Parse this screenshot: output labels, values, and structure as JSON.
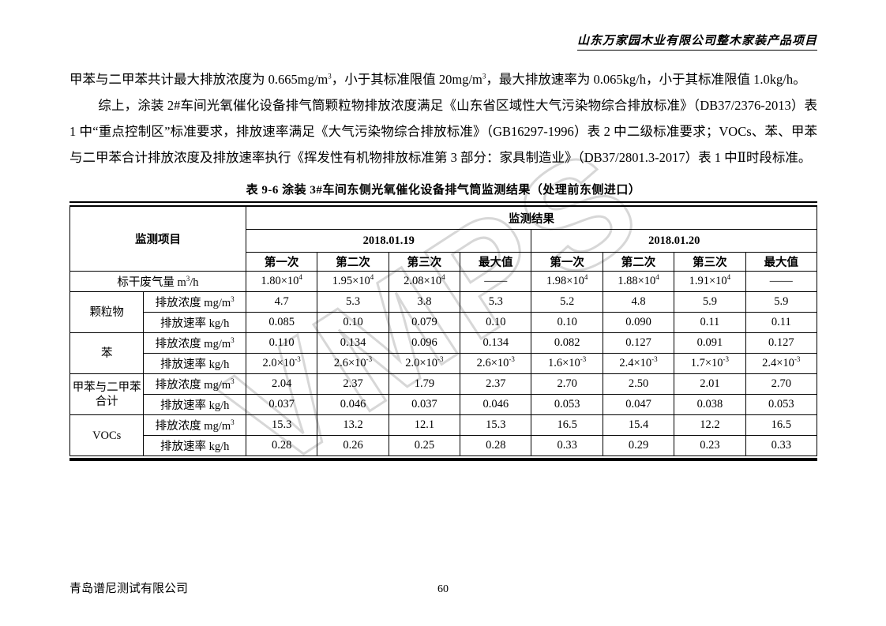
{
  "header": {
    "title": "山东万家园木业有限公司整木家装产品项目"
  },
  "watermark": "VMPS",
  "paragraphs": [
    {
      "text": "甲苯与二甲苯共计最大排放浓度为 0.665mg/m^{3}，小于其标准限值 20mg/m^{3}，最大排放速率为 0.065kg/h，小于其标准限值 1.0kg/h。"
    },
    {
      "text": "综上，涂装 2#车间光氧催化设备排气筒颗粒物排放浓度满足《山东省区域性大气污染物综合排放标准》（DB37/2376-2013）表 1 中“重点控制区”标准要求，排放速率满足《大气污染物综合排放标准》（GB16297-1996）表 2 中二级标准要求；VOCs、苯、甲苯与二甲苯合计排放浓度及排放速率执行《挥发性有机物排放标准第 3 部分：家具制造业》（DB37/2801.3-2017）表 1 中Ⅱ时段标准。"
    }
  ],
  "table": {
    "title": "表 9-6  涂装 3#车间东侧光氧催化设备排气筒监测结果（处理前东侧进口）",
    "header": {
      "item_label": "监测项目",
      "result_label": "监测结果",
      "date1": "2018.01.19",
      "date2": "2018.01.20",
      "runs": [
        "第一次",
        "第二次",
        "第三次",
        "最大值",
        "第一次",
        "第二次",
        "第三次",
        "最大值"
      ]
    },
    "rows": [
      {
        "label": "标干废气量  m^{3}/h",
        "values": [
          "1.80×10^{4}",
          "1.95×10^{4}",
          "2.08×10^{4}",
          "——",
          "1.98×10^{4}",
          "1.88×10^{4}",
          "1.91×10^{4}",
          "——"
        ]
      },
      {
        "category": "颗粒物",
        "rowspan": 2,
        "sub": "排放浓度 mg/m^{3}",
        "values": [
          "4.7",
          "5.3",
          "3.8",
          "5.3",
          "5.2",
          "4.8",
          "5.9",
          "5.9"
        ]
      },
      {
        "sub": "排放速率 kg/h",
        "values": [
          "0.085",
          "0.10",
          "0.079",
          "0.10",
          "0.10",
          "0.090",
          "0.11",
          "0.11"
        ]
      },
      {
        "category": "苯",
        "rowspan": 2,
        "sub": "排放浓度 mg/m^{3}",
        "values": [
          "0.110",
          "0.134",
          "0.096",
          "0.134",
          "0.082",
          "0.127",
          "0.091",
          "0.127"
        ]
      },
      {
        "sub": "排放速率 kg/h",
        "values": [
          "2.0×10^{-3}",
          "2.6×10^{-3}",
          "2.0×10^{-3}",
          "2.6×10^{-3}",
          "1.6×10^{-3}",
          "2.4×10^{-3}",
          "1.7×10^{-3}",
          "2.4×10^{-3}"
        ]
      },
      {
        "category": "甲苯与二甲苯合计",
        "rowspan": 2,
        "sub": "排放浓度 mg/m^{3}",
        "values": [
          "2.04",
          "2.37",
          "1.79",
          "2.37",
          "2.70",
          "2.50",
          "2.01",
          "2.70"
        ]
      },
      {
        "sub": "排放速率 kg/h",
        "values": [
          "0.037",
          "0.046",
          "0.037",
          "0.046",
          "0.053",
          "0.047",
          "0.038",
          "0.053"
        ]
      },
      {
        "category": "VOCs",
        "rowspan": 2,
        "sub": "排放浓度 mg/m^{3}",
        "values": [
          "15.3",
          "13.2",
          "12.1",
          "15.3",
          "16.5",
          "15.4",
          "12.2",
          "16.5"
        ]
      },
      {
        "sub": "排放速率 kg/h",
        "values": [
          "0.28",
          "0.26",
          "0.25",
          "0.28",
          "0.33",
          "0.29",
          "0.23",
          "0.33"
        ]
      }
    ]
  },
  "footer": {
    "company": "青岛谱尼测试有限公司",
    "page_number": "60"
  }
}
